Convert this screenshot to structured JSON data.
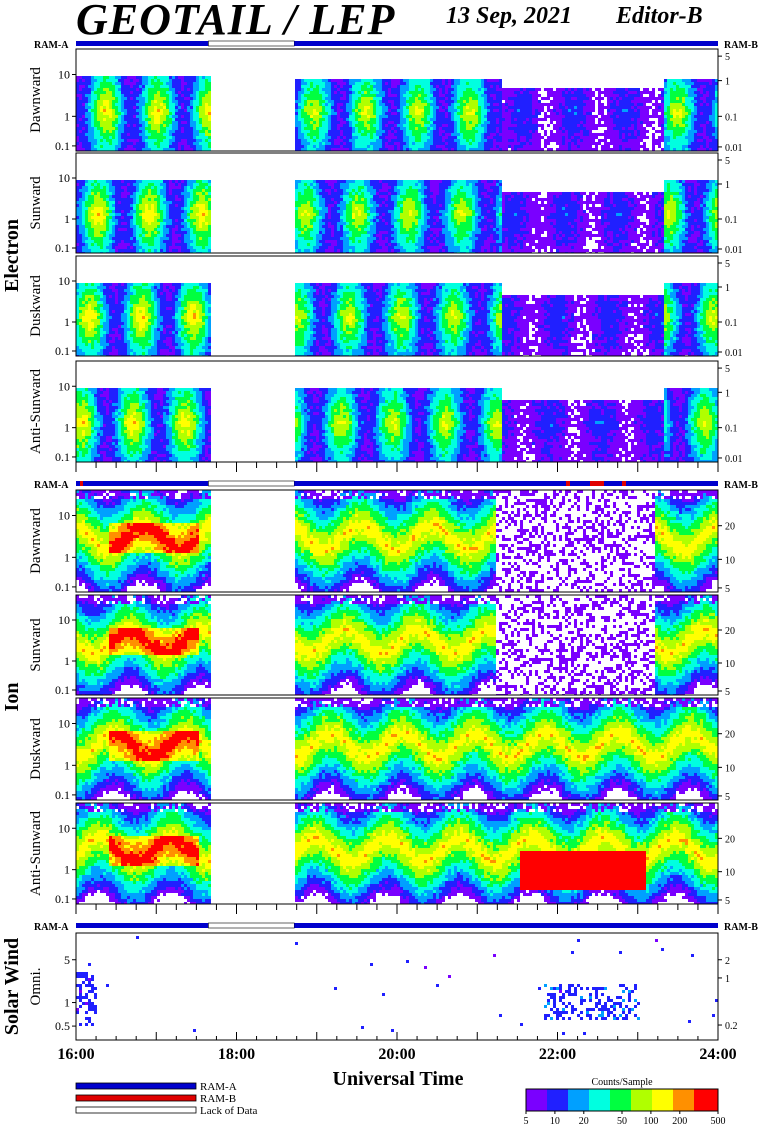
{
  "header": {
    "title": "GEOTAIL / LEP",
    "date": "13 Sep, 2021",
    "editor": "Editor-B"
  },
  "chart_data": {
    "type": "heatmap",
    "xlabel": "Universal Time",
    "x_ticks": [
      "16:00",
      "18:00",
      "20:00",
      "22:00",
      "24:00"
    ],
    "x_range_hours": [
      16,
      24
    ],
    "data_gap_hours": [
      17.65,
      18.72
    ],
    "groups": [
      {
        "name": "Electron",
        "ram_labels": [
          "RAM-A",
          "RAM-B"
        ],
        "left_ticks": [
          "10",
          "1",
          "0.1"
        ],
        "right_ticks": [
          "5",
          "1",
          "0.1",
          "0.01"
        ],
        "panels": [
          "Dawnward",
          "Sunward",
          "Duskward",
          "Anti-Sunward"
        ]
      },
      {
        "name": "Ion",
        "ram_labels": [
          "RAM-A",
          "RAM-B"
        ],
        "left_ticks": [
          "10",
          "1",
          "0.1"
        ],
        "right_ticks": [
          "20",
          "10",
          "5"
        ],
        "panels": [
          "Dawnward",
          "Sunward",
          "Duskward",
          "Anti-Sunward"
        ]
      },
      {
        "name": "Solar Wind",
        "ram_labels": [
          "RAM-A",
          "RAM-B"
        ],
        "left_ticks": [
          "5",
          "1",
          "0.5"
        ],
        "right_ticks": [
          "2",
          "1",
          "0.2"
        ],
        "panels": [
          "Omni."
        ]
      }
    ],
    "legend": [
      {
        "label": "RAM-A",
        "color": "#0000cc"
      },
      {
        "label": "RAM-B",
        "color": "#e00000"
      },
      {
        "label": "Lack of Data",
        "color": "#ffffff"
      }
    ],
    "colorbar": {
      "title": "Counts/Sample",
      "ticks": [
        "5",
        "10",
        "20",
        "50",
        "100",
        "200",
        "500"
      ],
      "colors": [
        "#7a00ff",
        "#2020ff",
        "#00a0ff",
        "#00ffe0",
        "#00ff40",
        "#b0ff00",
        "#ffff00",
        "#ff9000",
        "#ff0000"
      ]
    }
  }
}
